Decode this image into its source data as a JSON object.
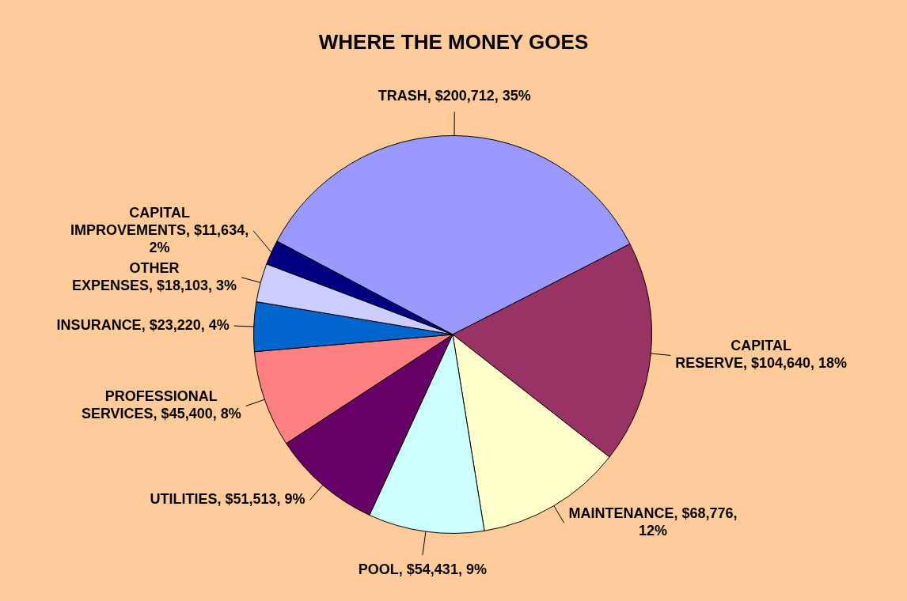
{
  "chart_data": {
    "type": "pie",
    "title": "WHERE THE MONEY GOES",
    "categories": [
      "TRASH",
      "CAPITAL RESERVE",
      "MAINTENANCE",
      "POOL",
      "UTILITIES",
      "PROFESSIONAL SERVICES",
      "INSURANCE",
      "OTHER EXPENSES",
      "CAPITAL IMPROVEMENTS"
    ],
    "values": [
      200712,
      104640,
      68776,
      54431,
      51513,
      45400,
      23220,
      18103,
      11634
    ],
    "colors": [
      "#9999ff",
      "#993366",
      "#ffffcc",
      "#ccffff",
      "#660066",
      "#ff8080",
      "#0066cc",
      "#ccccff",
      "#000080"
    ],
    "value_labels": [
      "$200,712, 35%",
      "$104,640, 18%",
      "$68,776, 12%",
      "$54,431, 9%",
      "$51,513, 9%",
      "$45,400, 8%",
      "$23,220, 4%",
      "$18,103, 3%",
      "$11,634, 2%"
    ]
  }
}
